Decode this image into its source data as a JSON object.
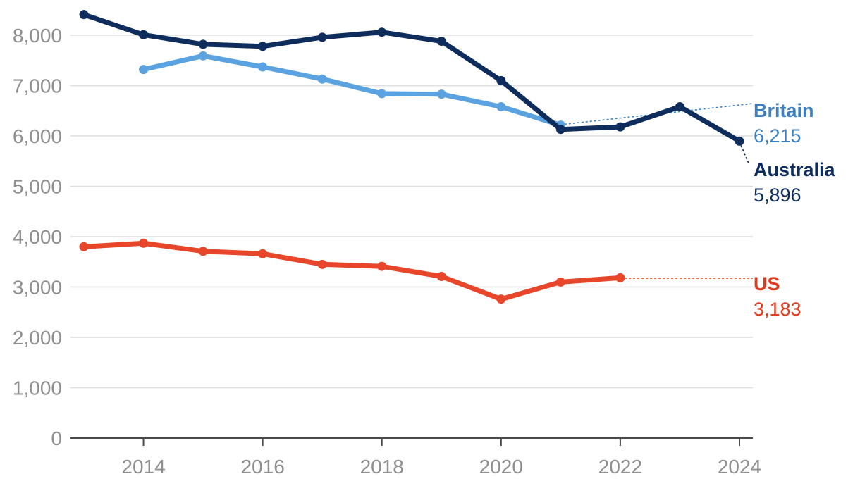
{
  "chart_data": {
    "type": "line",
    "title": "",
    "xlabel": "",
    "ylabel": "",
    "xlim": [
      2013,
      2024
    ],
    "ylim": [
      0,
      8000
    ],
    "x_ticks": [
      2014,
      2016,
      2018,
      2020,
      2022,
      2024
    ],
    "x_tick_labels": [
      "2014",
      "2016",
      "2018",
      "2020",
      "2022",
      "2024"
    ],
    "y_ticks": [
      0,
      1000,
      2000,
      3000,
      4000,
      5000,
      6000,
      7000,
      8000
    ],
    "y_tick_labels": [
      "0",
      "1,000",
      "2,000",
      "3,000",
      "4,000",
      "5,000",
      "6,000",
      "7,000",
      "8,000"
    ],
    "grid": true,
    "legend": "direct labels at right end of each line",
    "series": [
      {
        "name": "Australia",
        "color": "#0f2d5c",
        "end_label": "5,896",
        "points": [
          [
            2013,
            8410
          ],
          [
            2014,
            8010
          ],
          [
            2015,
            7820
          ],
          [
            2016,
            7780
          ],
          [
            2017,
            7960
          ],
          [
            2018,
            8060
          ],
          [
            2019,
            7880
          ],
          [
            2020,
            7100
          ],
          [
            2021,
            6130
          ],
          [
            2022,
            6180
          ],
          [
            2023,
            6580
          ],
          [
            2024,
            5896
          ]
        ]
      },
      {
        "name": "Britain",
        "color": "#5ba3e0",
        "label_color": "#3d80c2",
        "end_label": "6,215",
        "points": [
          [
            2014,
            7320
          ],
          [
            2015,
            7590
          ],
          [
            2016,
            7370
          ],
          [
            2017,
            7130
          ],
          [
            2018,
            6840
          ],
          [
            2019,
            6830
          ],
          [
            2020,
            6580
          ],
          [
            2021,
            6215
          ]
        ]
      },
      {
        "name": "US",
        "color": "#e8462b",
        "label_color": "#e03a1f",
        "end_label": "3,183",
        "points": [
          [
            2013,
            3800
          ],
          [
            2014,
            3870
          ],
          [
            2015,
            3710
          ],
          [
            2016,
            3660
          ],
          [
            2017,
            3450
          ],
          [
            2018,
            3410
          ],
          [
            2019,
            3210
          ],
          [
            2020,
            2760
          ],
          [
            2021,
            3100
          ],
          [
            2022,
            3183
          ]
        ]
      }
    ]
  }
}
